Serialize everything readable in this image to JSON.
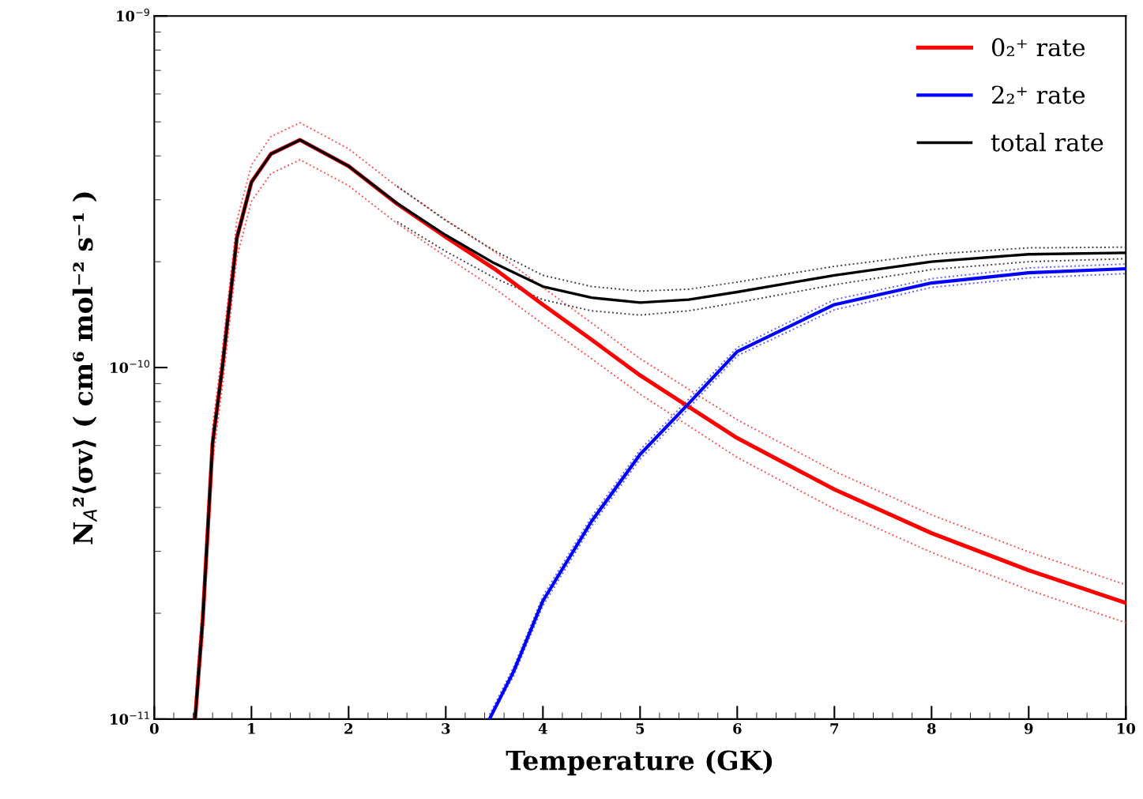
{
  "chart_data": {
    "type": "line",
    "xlabel": "Temperature (GK)",
    "ylabel": "N$_{A}$²⟨σv⟩ ( cm⁶ mol⁻² s⁻¹ )",
    "log": "y",
    "xlim": [
      0,
      10
    ],
    "ylim": [
      1e-11,
      1e-09
    ],
    "xticks": [
      0,
      1,
      2,
      3,
      4,
      5,
      6,
      7,
      8,
      9,
      10
    ],
    "yticks": [
      {
        "value": 1e-11,
        "label": "10$^{−11}$"
      },
      {
        "value": 1e-10,
        "label": "10$^{−10}$"
      },
      {
        "value": 1e-09,
        "label": "10$^{−9}$"
      }
    ],
    "grid": false,
    "legend": "top right",
    "marker": "none",
    "line_style": "solid",
    "series": [
      {
        "name": "0₂⁺ rate",
        "color": "#ff0000",
        "x": [
          0.42,
          0.5,
          0.6,
          0.7,
          0.85,
          1,
          1.2,
          1.5,
          2,
          2.5,
          3,
          3.5,
          4,
          4.5,
          5,
          6,
          7,
          8,
          9,
          10
        ],
        "values": [
          1e-11,
          1.95e-11,
          6.1e-11,
          1e-10,
          2.34e-10,
          3.37e-10,
          4.05e-10,
          4.44e-10,
          3.74e-10,
          2.92e-10,
          2.35e-10,
          1.91e-10,
          1.51e-10,
          1.2e-10,
          9.5e-11,
          6.3e-11,
          4.5e-11,
          3.38e-11,
          2.65e-11,
          2.14e-11
        ]
      },
      {
        "name": "2₂⁺ rate",
        "color": "#0000ff",
        "x": [
          3.45,
          3.7,
          4,
          4.5,
          5,
          5.5,
          6,
          7,
          8,
          9,
          10
        ],
        "values": [
          1e-11,
          1.37e-11,
          2.17e-11,
          3.65e-11,
          5.66e-11,
          7.9e-11,
          1.11e-10,
          1.51e-10,
          1.74e-10,
          1.86e-10,
          1.91e-10
        ]
      },
      {
        "name": "total rate",
        "color": "#000000",
        "x": [
          0.42,
          0.5,
          0.6,
          0.7,
          0.85,
          1,
          1.2,
          1.5,
          2,
          2.5,
          3,
          3.5,
          4,
          4.5,
          5,
          5.5,
          6,
          7,
          8,
          9,
          10
        ],
        "values": [
          1e-11,
          1.95e-11,
          6.1e-11,
          1e-10,
          2.34e-10,
          3.37e-10,
          4.05e-10,
          4.44e-10,
          3.74e-10,
          2.93e-10,
          2.38e-10,
          1.98e-10,
          1.7e-10,
          1.58e-10,
          1.53e-10,
          1.56e-10,
          1.64e-10,
          1.83e-10,
          2e-10,
          2.1e-10,
          2.12e-10
        ]
      },
      {
        "color": "#ff5050",
        "line_style": "dotted",
        "x": [
          0.42,
          0.5,
          0.6,
          0.7,
          0.85,
          1,
          1.2,
          1.5,
          2,
          2.5,
          3,
          3.5,
          4,
          4.5,
          5,
          6,
          7,
          8,
          9,
          10
        ],
        "values": [
          1.12e-11,
          2.2e-11,
          6.8e-11,
          1.12e-10,
          2.62e-10,
          3.77e-10,
          4.54e-10,
          4.97e-10,
          4.19e-10,
          3.27e-10,
          2.63e-10,
          2.14e-10,
          1.69e-10,
          1.34e-10,
          1.06e-10,
          7.1e-11,
          5.07e-11,
          3.81e-11,
          2.99e-11,
          2.41e-11
        ]
      },
      {
        "color": "#ff5050",
        "line_style": "dotted",
        "x": [
          0.42,
          0.5,
          0.6,
          0.7,
          0.85,
          1,
          1.2,
          1.5,
          2,
          2.5,
          3,
          3.5,
          4,
          4.5,
          5,
          6,
          7,
          8,
          9,
          10
        ],
        "values": [
          1e-11,
          1.72e-11,
          5.4e-11,
          8.8e-11,
          2.06e-10,
          2.97e-10,
          3.56e-10,
          3.9e-10,
          3.29e-10,
          2.57e-10,
          2.07e-10,
          1.68e-10,
          1.33e-10,
          1.06e-10,
          8.4e-11,
          5.55e-11,
          3.96e-11,
          2.98e-11,
          2.33e-11,
          1.88e-11
        ]
      },
      {
        "color": "#6060ff",
        "line_style": "dotted",
        "x": [
          3.45,
          3.7,
          4,
          4.5,
          5,
          5.5,
          6,
          7,
          8,
          9,
          10
        ],
        "values": [
          1.03e-11,
          1.41e-11,
          2.24e-11,
          3.76e-11,
          5.83e-11,
          8.14e-11,
          1.14e-10,
          1.56e-10,
          1.79e-10,
          1.92e-10,
          1.97e-10
        ]
      },
      {
        "color": "#6060ff",
        "line_style": "dotted",
        "x": [
          3.45,
          3.7,
          4,
          4.5,
          5,
          5.5,
          6,
          7,
          8,
          9,
          10
        ],
        "values": [
          1e-11,
          1.33e-11,
          2.1e-11,
          3.54e-11,
          5.49e-11,
          7.66e-11,
          1.08e-10,
          1.46e-10,
          1.69e-10,
          1.8e-10,
          1.85e-10
        ]
      },
      {
        "color": "#404040",
        "line_style": "dotted",
        "x": [
          2.5,
          3,
          3.5,
          4,
          4.5,
          5,
          5.5,
          6,
          7,
          8,
          9,
          10
        ],
        "values": [
          3.28e-10,
          2.62e-10,
          2.15e-10,
          1.83e-10,
          1.7e-10,
          1.65e-10,
          1.67e-10,
          1.75e-10,
          1.94e-10,
          2.1e-10,
          2.19e-10,
          2.2e-10
        ]
      },
      {
        "color": "#404040",
        "line_style": "dotted",
        "x": [
          2.5,
          3,
          3.5,
          4,
          4.5,
          5,
          5.5,
          6,
          7,
          8,
          9,
          10
        ],
        "values": [
          2.6e-10,
          2.14e-10,
          1.8e-10,
          1.56e-10,
          1.45e-10,
          1.41e-10,
          1.45e-10,
          1.53e-10,
          1.72e-10,
          1.9e-10,
          2e-10,
          2.04e-10
        ]
      }
    ]
  }
}
